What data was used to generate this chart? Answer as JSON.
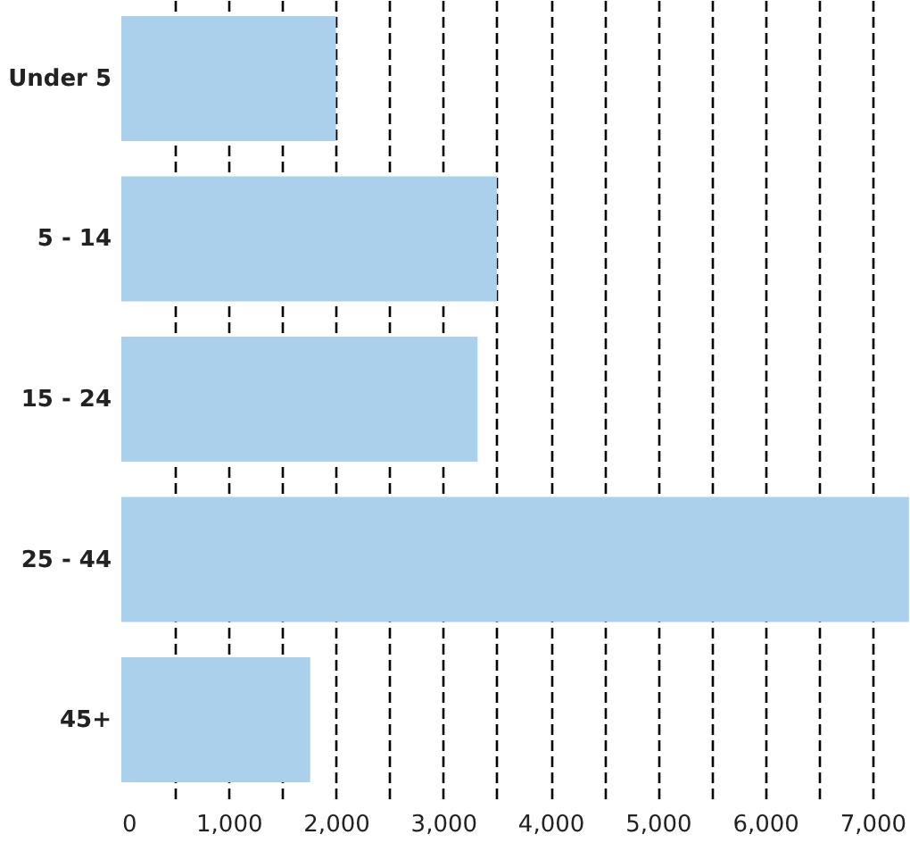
{
  "chart_data": {
    "type": "bar",
    "orientation": "horizontal",
    "categories": [
      "Under 5",
      "5 - 14",
      "15 - 24",
      "25 - 44",
      "45+"
    ],
    "values": [
      2000,
      3500,
      3320,
      7340,
      1760
    ],
    "color": "#aad0eb",
    "xlim": [
      0,
      7350
    ],
    "xticks": [
      0,
      {
        "value": 500,
        "label": null
      },
      {
        "value": 1000,
        "label": "1,000"
      },
      {
        "value": 1500,
        "label": null
      },
      {
        "value": 2000,
        "label": "2,000"
      },
      {
        "value": 2500,
        "label": null
      },
      {
        "value": 3000,
        "label": "3,000"
      },
      {
        "value": 3500,
        "label": null
      },
      {
        "value": 4000,
        "label": "4,000"
      },
      {
        "value": 4500,
        "label": null
      },
      {
        "value": 5000,
        "label": "5,000"
      },
      {
        "value": 5500,
        "label": null
      },
      {
        "value": 6000,
        "label": "6,000"
      },
      {
        "value": 6500,
        "label": null
      },
      {
        "value": 7000,
        "label": "7,000"
      }
    ],
    "grid": "x"
  }
}
